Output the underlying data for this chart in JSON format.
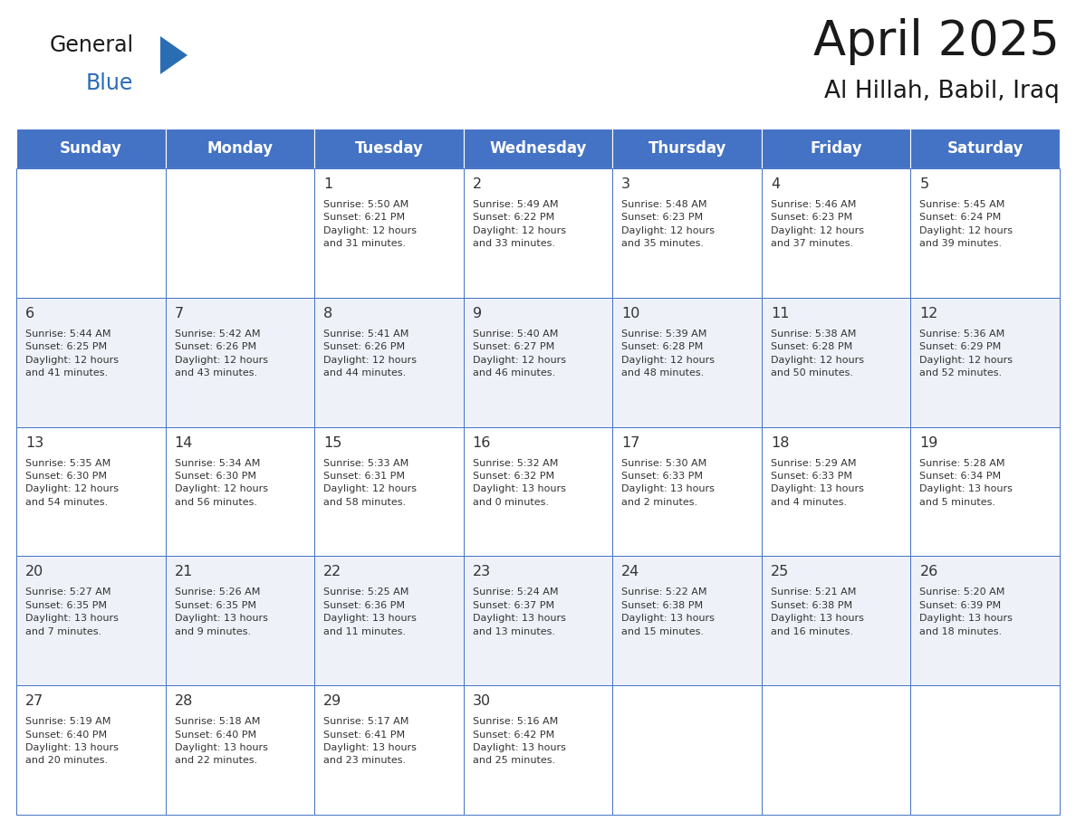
{
  "title": "April 2025",
  "subtitle": "Al Hillah, Babil, Iraq",
  "header_color": "#4472C4",
  "header_text_color": "#FFFFFF",
  "border_color": "#4472C4",
  "text_color": "#333333",
  "days_of_week": [
    "Sunday",
    "Monday",
    "Tuesday",
    "Wednesday",
    "Thursday",
    "Friday",
    "Saturday"
  ],
  "weeks": [
    [
      {
        "day": "",
        "info": ""
      },
      {
        "day": "",
        "info": ""
      },
      {
        "day": "1",
        "info": "Sunrise: 5:50 AM\nSunset: 6:21 PM\nDaylight: 12 hours\nand 31 minutes."
      },
      {
        "day": "2",
        "info": "Sunrise: 5:49 AM\nSunset: 6:22 PM\nDaylight: 12 hours\nand 33 minutes."
      },
      {
        "day": "3",
        "info": "Sunrise: 5:48 AM\nSunset: 6:23 PM\nDaylight: 12 hours\nand 35 minutes."
      },
      {
        "day": "4",
        "info": "Sunrise: 5:46 AM\nSunset: 6:23 PM\nDaylight: 12 hours\nand 37 minutes."
      },
      {
        "day": "5",
        "info": "Sunrise: 5:45 AM\nSunset: 6:24 PM\nDaylight: 12 hours\nand 39 minutes."
      }
    ],
    [
      {
        "day": "6",
        "info": "Sunrise: 5:44 AM\nSunset: 6:25 PM\nDaylight: 12 hours\nand 41 minutes."
      },
      {
        "day": "7",
        "info": "Sunrise: 5:42 AM\nSunset: 6:26 PM\nDaylight: 12 hours\nand 43 minutes."
      },
      {
        "day": "8",
        "info": "Sunrise: 5:41 AM\nSunset: 6:26 PM\nDaylight: 12 hours\nand 44 minutes."
      },
      {
        "day": "9",
        "info": "Sunrise: 5:40 AM\nSunset: 6:27 PM\nDaylight: 12 hours\nand 46 minutes."
      },
      {
        "day": "10",
        "info": "Sunrise: 5:39 AM\nSunset: 6:28 PM\nDaylight: 12 hours\nand 48 minutes."
      },
      {
        "day": "11",
        "info": "Sunrise: 5:38 AM\nSunset: 6:28 PM\nDaylight: 12 hours\nand 50 minutes."
      },
      {
        "day": "12",
        "info": "Sunrise: 5:36 AM\nSunset: 6:29 PM\nDaylight: 12 hours\nand 52 minutes."
      }
    ],
    [
      {
        "day": "13",
        "info": "Sunrise: 5:35 AM\nSunset: 6:30 PM\nDaylight: 12 hours\nand 54 minutes."
      },
      {
        "day": "14",
        "info": "Sunrise: 5:34 AM\nSunset: 6:30 PM\nDaylight: 12 hours\nand 56 minutes."
      },
      {
        "day": "15",
        "info": "Sunrise: 5:33 AM\nSunset: 6:31 PM\nDaylight: 12 hours\nand 58 minutes."
      },
      {
        "day": "16",
        "info": "Sunrise: 5:32 AM\nSunset: 6:32 PM\nDaylight: 13 hours\nand 0 minutes."
      },
      {
        "day": "17",
        "info": "Sunrise: 5:30 AM\nSunset: 6:33 PM\nDaylight: 13 hours\nand 2 minutes."
      },
      {
        "day": "18",
        "info": "Sunrise: 5:29 AM\nSunset: 6:33 PM\nDaylight: 13 hours\nand 4 minutes."
      },
      {
        "day": "19",
        "info": "Sunrise: 5:28 AM\nSunset: 6:34 PM\nDaylight: 13 hours\nand 5 minutes."
      }
    ],
    [
      {
        "day": "20",
        "info": "Sunrise: 5:27 AM\nSunset: 6:35 PM\nDaylight: 13 hours\nand 7 minutes."
      },
      {
        "day": "21",
        "info": "Sunrise: 5:26 AM\nSunset: 6:35 PM\nDaylight: 13 hours\nand 9 minutes."
      },
      {
        "day": "22",
        "info": "Sunrise: 5:25 AM\nSunset: 6:36 PM\nDaylight: 13 hours\nand 11 minutes."
      },
      {
        "day": "23",
        "info": "Sunrise: 5:24 AM\nSunset: 6:37 PM\nDaylight: 13 hours\nand 13 minutes."
      },
      {
        "day": "24",
        "info": "Sunrise: 5:22 AM\nSunset: 6:38 PM\nDaylight: 13 hours\nand 15 minutes."
      },
      {
        "day": "25",
        "info": "Sunrise: 5:21 AM\nSunset: 6:38 PM\nDaylight: 13 hours\nand 16 minutes."
      },
      {
        "day": "26",
        "info": "Sunrise: 5:20 AM\nSunset: 6:39 PM\nDaylight: 13 hours\nand 18 minutes."
      }
    ],
    [
      {
        "day": "27",
        "info": "Sunrise: 5:19 AM\nSunset: 6:40 PM\nDaylight: 13 hours\nand 20 minutes."
      },
      {
        "day": "28",
        "info": "Sunrise: 5:18 AM\nSunset: 6:40 PM\nDaylight: 13 hours\nand 22 minutes."
      },
      {
        "day": "29",
        "info": "Sunrise: 5:17 AM\nSunset: 6:41 PM\nDaylight: 13 hours\nand 23 minutes."
      },
      {
        "day": "30",
        "info": "Sunrise: 5:16 AM\nSunset: 6:42 PM\nDaylight: 13 hours\nand 25 minutes."
      },
      {
        "day": "",
        "info": ""
      },
      {
        "day": "",
        "info": ""
      },
      {
        "day": "",
        "info": ""
      }
    ]
  ],
  "logo_general_color": "#1a1a1a",
  "logo_blue_color": "#2a6db5",
  "logo_triangle_color": "#2a6db5",
  "fig_width": 11.88,
  "fig_height": 9.18,
  "dpi": 100
}
